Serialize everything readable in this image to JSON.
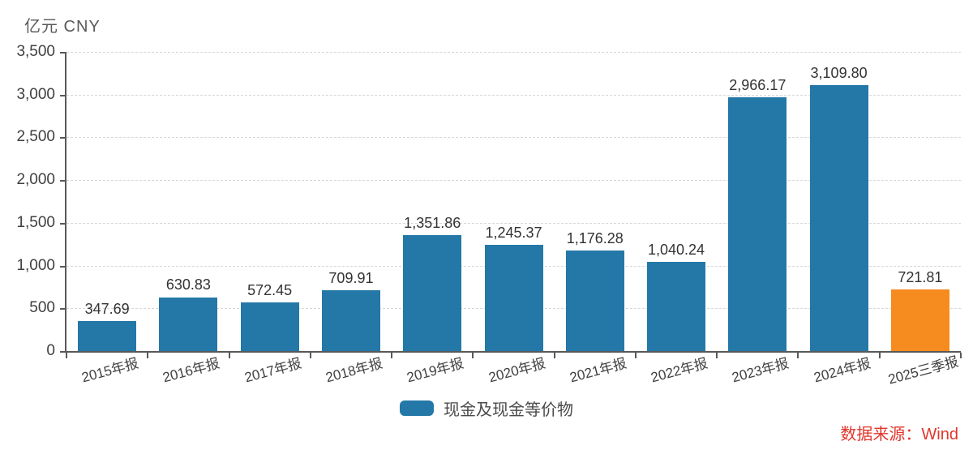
{
  "header": {
    "unit_label": "亿元 CNY"
  },
  "chart_data": {
    "type": "bar",
    "title": "",
    "ylabel": "亿元 CNY",
    "xlabel": "",
    "categories": [
      "2015年报",
      "2016年报",
      "2017年报",
      "2018年报",
      "2019年报",
      "2020年报",
      "2021年报",
      "2022年报",
      "2023年报",
      "2024年报",
      "2025三季报"
    ],
    "values": [
      347.69,
      630.83,
      572.45,
      709.91,
      1351.86,
      1245.37,
      1176.28,
      1040.24,
      2966.17,
      3109.8,
      721.81
    ],
    "value_labels": [
      "347.69",
      "630.83",
      "572.45",
      "709.91",
      "1,351.86",
      "1,245.37",
      "1,176.28",
      "1,040.24",
      "2,966.17",
      "3,109.80",
      "721.81"
    ],
    "bar_colors": [
      "#2478a8",
      "#2478a8",
      "#2478a8",
      "#2478a8",
      "#2478a8",
      "#2478a8",
      "#2478a8",
      "#2478a8",
      "#2478a8",
      "#2478a8",
      "#f68b1f"
    ],
    "ylim": [
      0,
      3500
    ],
    "ytick_step": 500,
    "ytick_labels": [
      "0",
      "500",
      "1,000",
      "1,500",
      "2,000",
      "2,500",
      "3,000",
      "3,500"
    ],
    "grid": "horizontal-dashed",
    "legend_position": "bottom-center"
  },
  "legend": {
    "label": "现金及现金等价物",
    "swatch_color": "#2478a8"
  },
  "footer": {
    "source_label": "数据来源：Wind",
    "source_color": "#e1352b"
  },
  "colors": {
    "bar_teal": "#2478a8",
    "bar_orange": "#f68b1f",
    "axis": "#595959",
    "gridline": "#d8d8d8",
    "tick_text": "#404040",
    "value_text": "#333333"
  }
}
